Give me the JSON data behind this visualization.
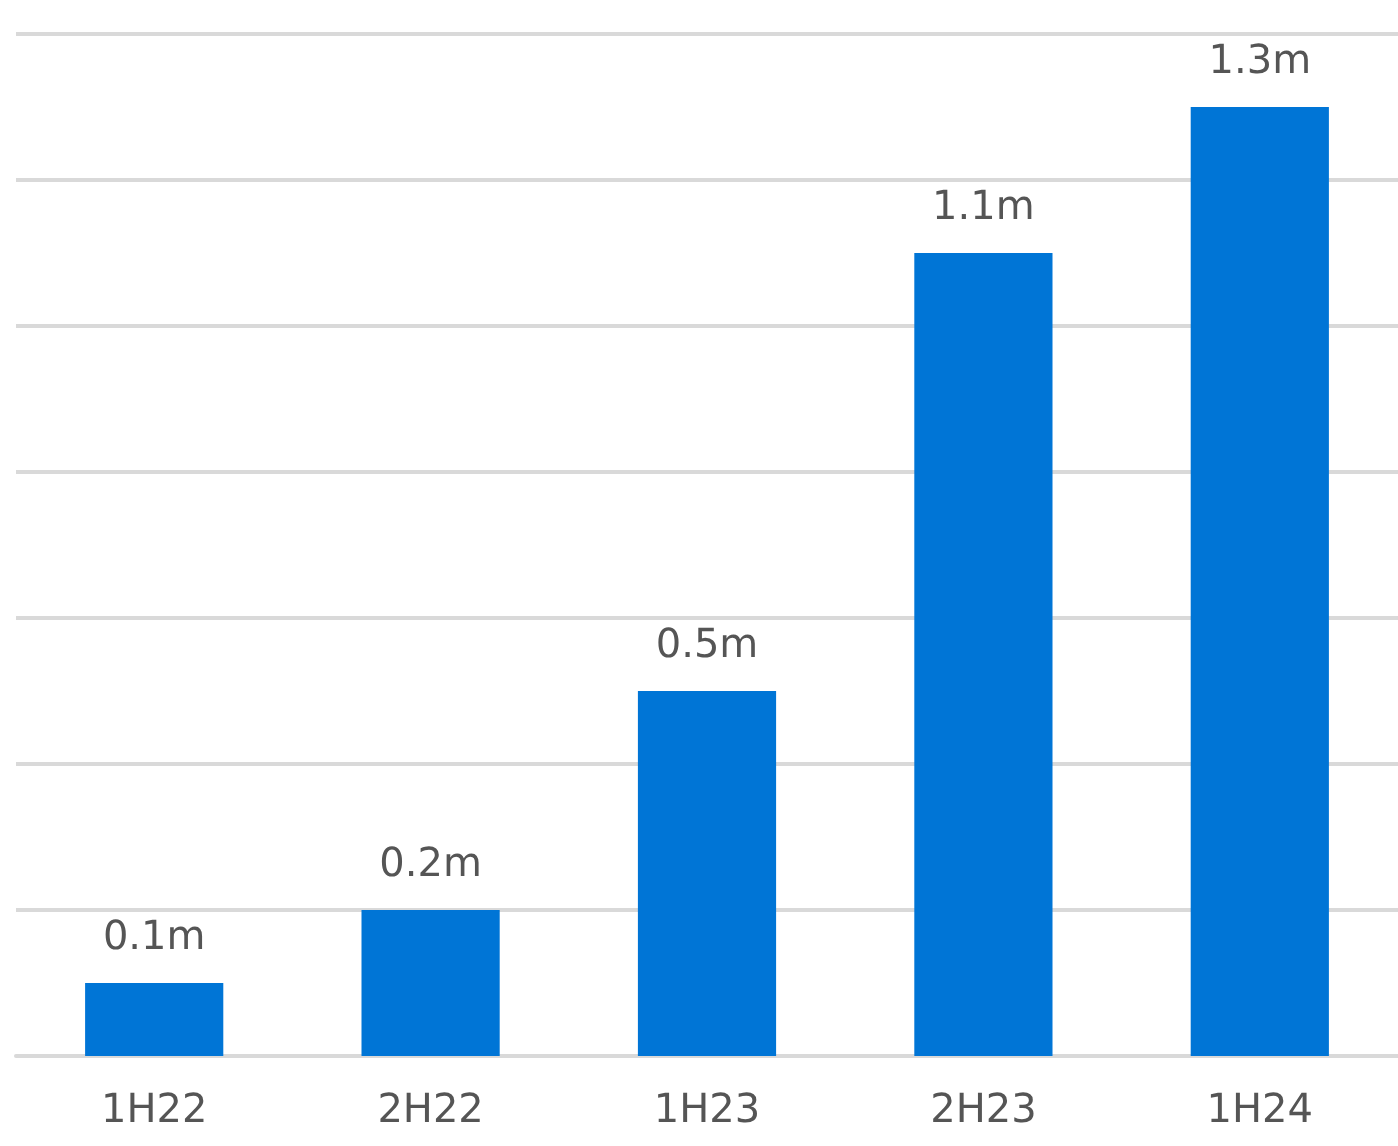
{
  "chart_data": {
    "type": "bar",
    "categories": [
      "1H22",
      "2H22",
      "1H23",
      "2H23",
      "1H24"
    ],
    "values": [
      0.1,
      0.2,
      0.5,
      1.1,
      1.3
    ],
    "value_labels": [
      "0.1m",
      "0.2m",
      "0.5m",
      "1.1m",
      "1.3m"
    ],
    "color": "#0075d6",
    "ylim": [
      0,
      1.4
    ],
    "yticks": [
      {
        "value": 0,
        "label": null
      },
      {
        "value": 0.2,
        "label": null
      },
      {
        "value": 0.4,
        "label": null
      },
      {
        "value": 0.6,
        "label": null
      },
      {
        "value": 0.8,
        "label": null
      },
      {
        "value": 1.0,
        "label": null
      },
      {
        "value": 1.2,
        "label": null
      },
      {
        "value": 1.4,
        "label": null
      }
    ],
    "grid": "y",
    "tick_labels": "x"
  }
}
